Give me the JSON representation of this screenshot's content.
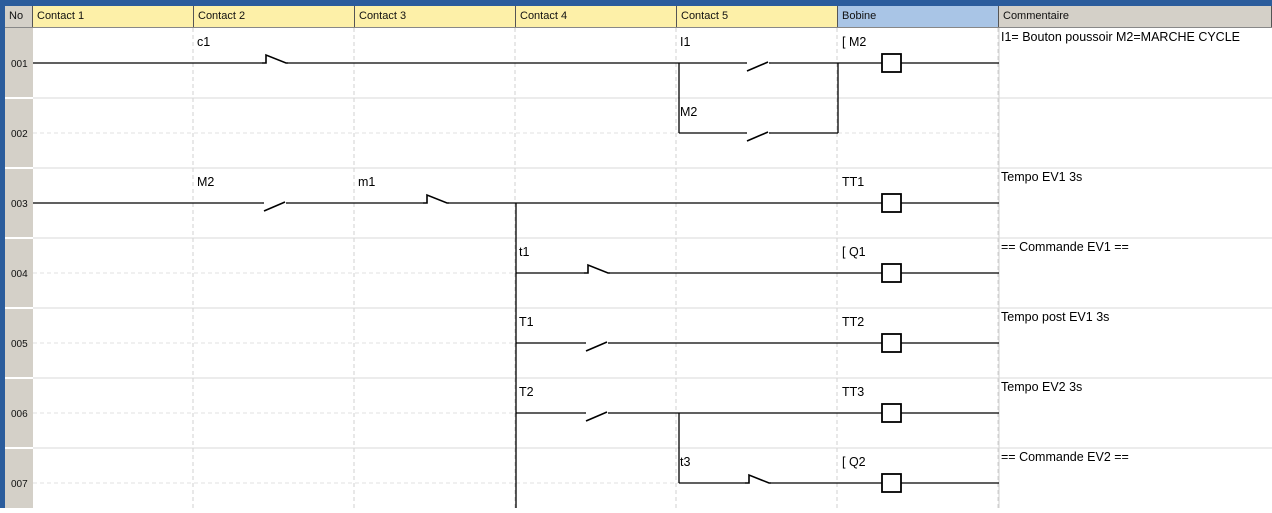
{
  "header": {
    "no": "No",
    "columns": [
      "Contact 1",
      "Contact 2",
      "Contact 3",
      "Contact 4",
      "Contact 5"
    ],
    "coil": "Bobine",
    "comment": "Commentaire"
  },
  "colors": {
    "border": "#2b5c9c",
    "contact_header": "#fdf0a8",
    "coil_header": "#a9c5e6",
    "gray": "#d4d0c8"
  },
  "rows": [
    {
      "no": "001",
      "contacts": [
        {
          "col": 1,
          "label": "c1",
          "type": "NC"
        },
        {
          "col": 4,
          "label": "I1",
          "type": "NO"
        }
      ],
      "coil": {
        "label": "[ M2"
      },
      "comment": "I1= Bouton poussoir M2=MARCHE CYCLE"
    },
    {
      "no": "002",
      "contacts": [
        {
          "col": 4,
          "label": "M2",
          "type": "NO"
        }
      ],
      "comment": ""
    },
    {
      "no": "003",
      "contacts": [
        {
          "col": 1,
          "label": "M2",
          "type": "NO"
        },
        {
          "col": 2,
          "label": "m1",
          "type": "NC"
        }
      ],
      "coil": {
        "label": "TT1"
      },
      "comment": "Tempo EV1 3s"
    },
    {
      "no": "004",
      "contacts": [
        {
          "col": 3,
          "label": "t1",
          "type": "NC"
        }
      ],
      "coil": {
        "label": "[ Q1"
      },
      "comment": "== Commande EV1 =="
    },
    {
      "no": "005",
      "contacts": [
        {
          "col": 3,
          "label": "T1",
          "type": "NO"
        }
      ],
      "coil": {
        "label": "TT2"
      },
      "comment": "Tempo post EV1  3s"
    },
    {
      "no": "006",
      "contacts": [
        {
          "col": 3,
          "label": "T2",
          "type": "NO"
        }
      ],
      "coil": {
        "label": "TT3"
      },
      "comment": "Tempo EV2 3s"
    },
    {
      "no": "007",
      "contacts": [
        {
          "col": 4,
          "label": "t3",
          "type": "NC"
        }
      ],
      "coil": {
        "label": "[ Q2"
      },
      "comment": "== Commande EV2 =="
    }
  ]
}
